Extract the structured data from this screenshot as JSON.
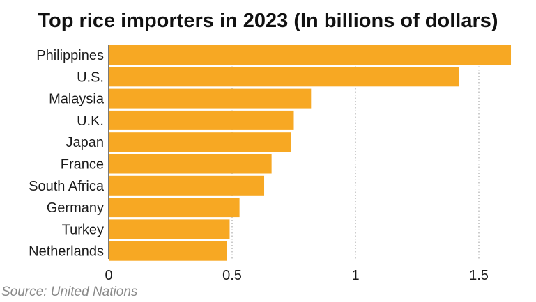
{
  "chart_data": {
    "type": "bar",
    "orientation": "horizontal",
    "title": "Top rice importers in 2023 (In billions of dollars)",
    "xlabel": "",
    "ylabel": "",
    "categories": [
      "Philippines",
      "U.S.",
      "Malaysia",
      "U.K.",
      "Japan",
      "France",
      "South Africa",
      "Germany",
      "Turkey",
      "Netherlands"
    ],
    "values": [
      1.63,
      1.42,
      0.82,
      0.75,
      0.74,
      0.66,
      0.63,
      0.53,
      0.49,
      0.48
    ],
    "xlim": [
      0,
      1.65
    ],
    "xticks": [
      0,
      0.5,
      1,
      1.5
    ],
    "xtick_labels": [
      "0",
      "0.5",
      "1",
      "1.5"
    ],
    "grid": "vertical-dotted",
    "legend": "none",
    "bar_color": "#f7a823"
  },
  "source": "Source: United Nations"
}
